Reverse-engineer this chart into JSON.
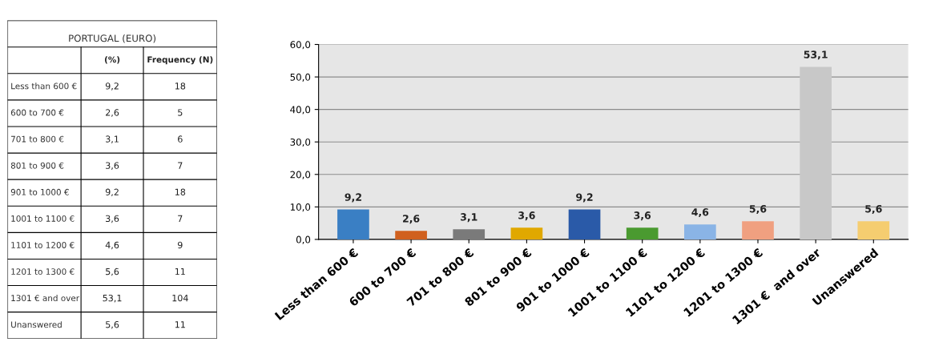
{
  "chart_data": [
    {
      "type": "other",
      "title": "PORTUGAL (EURO)",
      "annotations": [
        "(%)",
        "Frequency (N)",
        "Less than 600 €",
        "9,2",
        "18",
        "600 to 700 €",
        "2,6",
        "5",
        "701 to 800 €",
        "3,1",
        "6",
        "801 to 900 €",
        "3,6",
        "7",
        "901 to 1000 €",
        "9,2",
        "18",
        "1001 to 1100 €",
        "3,6",
        "7",
        "1101 to 1200 €",
        "4,6",
        "9",
        "1201 to 1300 €",
        "5,6",
        "11",
        "1301 € and over",
        "53,1",
        "104",
        "Unanswered",
        "5,6",
        "11"
      ]
    },
    {
      "type": "bar",
      "categories": [
        "Less than 600 €",
        "600 to 700 €",
        "701 to 800 €",
        "801 to 900 €",
        "901 to 1000 €",
        "1001 to 1100 €",
        "1101 to 1200 €",
        "1201 to 1300 €",
        "1301 €  and over",
        "Unanswered"
      ],
      "values": [
        9.2,
        2.6,
        3.1,
        3.6,
        9.2,
        3.6,
        4.6,
        5.6,
        53.1,
        5.6
      ],
      "value_labels": [
        "9,2",
        "2,6",
        "3,1",
        "3,6",
        "9,2",
        "3,6",
        "4,6",
        "5,6",
        "53,1",
        "5,6"
      ],
      "colors": [
        "#3a7fc4",
        "#d0601e",
        "#7a7a7a",
        "#e0a800",
        "#2a5aa8",
        "#4a9a30",
        "#8ab4e6",
        "#f0a080",
        "#c8c8c8",
        "#f5cd70"
      ],
      "ylim": [
        0,
        60
      ],
      "yticks": [
        {
          "value": 0,
          "label": "0,0"
        },
        {
          "value": 10,
          "label": "10,0"
        },
        {
          "value": 20,
          "label": "20,0"
        },
        {
          "value": 30,
          "label": "30,0"
        },
        {
          "value": 40,
          "label": "40,0"
        },
        {
          "value": 50,
          "label": "50,0"
        },
        {
          "value": 60,
          "label": "60,0"
        }
      ],
      "grid": "y"
    }
  ]
}
